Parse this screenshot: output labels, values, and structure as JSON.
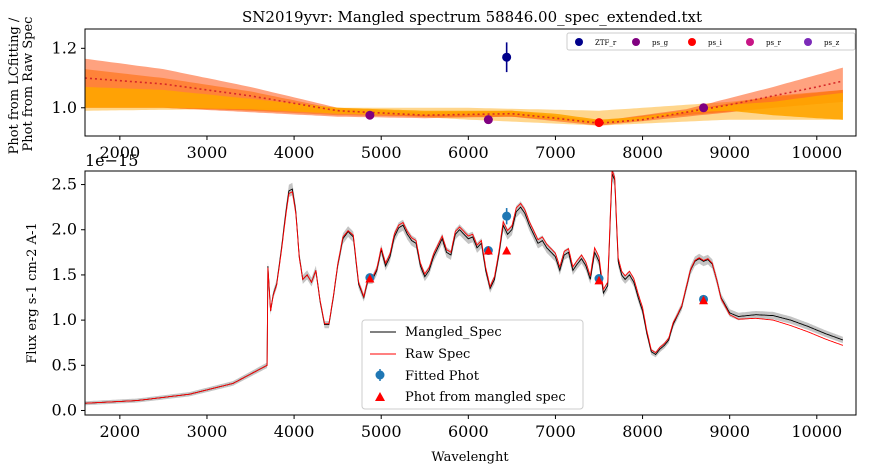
{
  "chart_data": [
    {
      "type": "line",
      "title": "SN2019yvr: Mangled spectrum 58846.00_spec_extended.txt",
      "xlabel": "",
      "ylabel": "Phot from LCfitting /\nPhot from Raw Spec",
      "xlim": [
        1600,
        10450
      ],
      "ylim": [
        0.905,
        1.265
      ],
      "xticks": [
        2000,
        3000,
        4000,
        5000,
        6000,
        7000,
        8000,
        9000,
        10000
      ],
      "yticks": [
        1.0,
        1.2
      ],
      "ytick_labels": [
        "1.0",
        "1.2"
      ],
      "legend_position": "upper-right",
      "legend": [
        {
          "name": "ZTF_r",
          "color": "#00008b"
        },
        {
          "name": "ps_g",
          "color": "#800080"
        },
        {
          "name": "ps_i",
          "color": "#ff0000"
        },
        {
          "name": "ps_r",
          "color": "#c71585"
        },
        {
          "name": "ps_z",
          "color": "#7b2ab8"
        }
      ],
      "points": [
        {
          "x": 4870,
          "y": 0.975,
          "color": "#800080",
          "yerr": 0
        },
        {
          "x": 6440,
          "y": 1.17,
          "color": "#00008b",
          "yerr": 0.05
        },
        {
          "x": 6230,
          "y": 0.96,
          "color": "#800080",
          "yerr": 0
        },
        {
          "x": 7500,
          "y": 0.95,
          "color": "#ff0000",
          "yerr": 0
        },
        {
          "x": 8700,
          "y": 1.0,
          "color": "#800080",
          "yerr": 0
        }
      ],
      "ratio_curve": {
        "color": "#d62728",
        "x": [
          1600,
          2500,
          3500,
          4500,
          5500,
          6500,
          7000,
          7500,
          8000,
          8500,
          9000,
          9500,
          10000,
          10300
        ],
        "y": [
          1.1,
          1.08,
          1.04,
          0.99,
          0.975,
          0.98,
          0.965,
          0.948,
          0.96,
          0.985,
          1.01,
          1.04,
          1.07,
          1.09
        ]
      },
      "bands": [
        {
          "color": "#ffa500",
          "opacity": 0.45,
          "x": [
            1600,
            3000,
            4500,
            6000,
            7500,
            9000,
            10300
          ],
          "lo": [
            0.99,
            0.995,
            0.985,
            0.96,
            0.94,
            0.96,
            0.96
          ],
          "hi": [
            1.0,
            1.0,
            1.0,
            1.0,
            0.99,
            1.02,
            1.06
          ]
        },
        {
          "color": "#ff4500",
          "opacity": 0.5,
          "x": [
            1600,
            2500,
            3500,
            4500,
            5500,
            6500,
            7500,
            8500,
            9500,
            10300
          ],
          "lo": [
            1.0,
            1.0,
            0.985,
            0.97,
            0.965,
            0.97,
            0.94,
            0.97,
            1.0,
            1.02
          ],
          "hi": [
            1.165,
            1.13,
            1.07,
            1.0,
            0.985,
            0.99,
            0.955,
            0.995,
            1.07,
            1.135
          ]
        },
        {
          "color": "#ff6a00",
          "opacity": 0.55,
          "x": [
            1600,
            2500,
            3500,
            4500,
            5500,
            6500,
            7500,
            8500,
            9500,
            10300
          ],
          "lo": [
            1.0,
            1.0,
            0.99,
            0.975,
            0.97,
            0.97,
            0.95,
            0.975,
            1.0,
            1.02
          ],
          "hi": [
            1.13,
            1.1,
            1.055,
            0.995,
            0.98,
            0.99,
            0.955,
            0.99,
            1.04,
            1.06
          ]
        },
        {
          "color": "#ffa500",
          "opacity": 0.9,
          "x": [
            1600,
            2500,
            3500,
            4500,
            5500,
            6500,
            7000,
            7500,
            8000,
            8500,
            9000,
            9500,
            10000,
            10300
          ],
          "lo": [
            1.0,
            1.0,
            0.995,
            0.98,
            0.975,
            0.975,
            0.96,
            0.945,
            0.958,
            0.985,
            0.99,
            0.975,
            0.965,
            0.96
          ],
          "hi": [
            1.07,
            1.06,
            1.03,
            1.0,
            0.99,
            0.99,
            0.98,
            0.96,
            0.97,
            0.99,
            1.01,
            1.02,
            1.04,
            1.05
          ]
        }
      ]
    },
    {
      "type": "line",
      "title": "",
      "xlabel": "Wavelenght",
      "ylabel": "Flux erg s-1 cm-2 A-1",
      "offset_label": "1e−15",
      "xlim": [
        1600,
        10450
      ],
      "ylim": [
        -0.05,
        2.65
      ],
      "xticks": [
        2000,
        3000,
        4000,
        5000,
        6000,
        7000,
        8000,
        9000,
        10000
      ],
      "yticks": [
        0.0,
        0.5,
        1.0,
        1.5,
        2.0,
        2.5
      ],
      "ytick_labels": [
        "0.0",
        "0.5",
        "1.0",
        "1.5",
        "2.0",
        "2.5"
      ],
      "legend_position": "lower-center",
      "series": [
        {
          "name": "Mangled_Spec",
          "color": "#000000",
          "x": [
            1600,
            2200,
            2800,
            3300,
            3690,
            3695,
            3730,
            3760,
            3800,
            3850,
            3900,
            3940,
            3980,
            4020,
            4060,
            4100,
            4150,
            4200,
            4250,
            4300,
            4350,
            4400,
            4450,
            4500,
            4560,
            4620,
            4680,
            4740,
            4800,
            4850,
            4900,
            4950,
            5000,
            5050,
            5100,
            5150,
            5200,
            5250,
            5300,
            5350,
            5400,
            5450,
            5500,
            5550,
            5600,
            5650,
            5700,
            5750,
            5800,
            5850,
            5900,
            5950,
            6000,
            6050,
            6100,
            6150,
            6200,
            6250,
            6300,
            6350,
            6400,
            6450,
            6500,
            6550,
            6600,
            6650,
            6700,
            6750,
            6800,
            6850,
            6900,
            6950,
            7000,
            7050,
            7100,
            7150,
            7200,
            7250,
            7300,
            7350,
            7400,
            7450,
            7500,
            7550,
            7600,
            7650,
            7680,
            7720,
            7760,
            7800,
            7850,
            7900,
            7950,
            8000,
            8050,
            8100,
            8150,
            8200,
            8250,
            8300,
            8350,
            8400,
            8450,
            8500,
            8550,
            8600,
            8650,
            8700,
            8750,
            8800,
            8850,
            8900,
            9000,
            9100,
            9300,
            9500,
            9700,
            9900,
            10100,
            10300
          ],
          "y": [
            0.08,
            0.11,
            0.18,
            0.3,
            0.5,
            1.68,
            1.1,
            1.28,
            1.4,
            1.75,
            2.15,
            2.43,
            2.45,
            2.2,
            1.7,
            1.45,
            1.5,
            1.42,
            1.55,
            1.2,
            0.95,
            0.95,
            1.25,
            1.6,
            1.9,
            1.98,
            1.92,
            1.4,
            1.25,
            1.45,
            1.45,
            1.55,
            1.78,
            1.6,
            1.7,
            1.92,
            2.02,
            2.05,
            1.95,
            1.88,
            1.85,
            1.6,
            1.48,
            1.55,
            1.7,
            1.8,
            1.9,
            1.75,
            1.72,
            1.95,
            2.0,
            1.95,
            1.9,
            1.92,
            1.8,
            1.85,
            1.55,
            1.35,
            1.45,
            1.72,
            2.05,
            1.95,
            2.0,
            2.2,
            2.25,
            2.18,
            2.05,
            1.95,
            1.85,
            1.88,
            1.8,
            1.75,
            1.7,
            1.55,
            1.72,
            1.75,
            1.55,
            1.62,
            1.68,
            1.6,
            1.45,
            1.75,
            1.65,
            1.3,
            1.38,
            2.62,
            2.55,
            1.65,
            1.5,
            1.45,
            1.5,
            1.42,
            1.25,
            1.1,
            0.85,
            0.65,
            0.62,
            0.68,
            0.72,
            0.78,
            0.95,
            1.05,
            1.15,
            1.35,
            1.55,
            1.65,
            1.68,
            1.65,
            1.67,
            1.62,
            1.45,
            1.25,
            1.08,
            1.04,
            1.06,
            1.05,
            1.0,
            0.93,
            0.85,
            0.78
          ],
          "band": true,
          "band_color": "#b0b0b0"
        },
        {
          "name": "Raw Spec",
          "color": "#ff0000",
          "x": [
            1600,
            2200,
            2800,
            3300,
            3690,
            3695,
            3730,
            3760,
            3800,
            3850,
            3900,
            3940,
            3980,
            4020,
            4060,
            4100,
            4150,
            4200,
            4250,
            4300,
            4350,
            4400,
            4450,
            4500,
            4560,
            4620,
            4680,
            4740,
            4800,
            4850,
            4900,
            4950,
            5000,
            5050,
            5100,
            5150,
            5200,
            5250,
            5300,
            5350,
            5400,
            5450,
            5500,
            5550,
            5600,
            5650,
            5700,
            5750,
            5800,
            5850,
            5900,
            5950,
            6000,
            6050,
            6100,
            6150,
            6200,
            6250,
            6300,
            6350,
            6400,
            6450,
            6500,
            6550,
            6600,
            6650,
            6700,
            6750,
            6800,
            6850,
            6900,
            6950,
            7000,
            7050,
            7100,
            7150,
            7200,
            7250,
            7300,
            7350,
            7400,
            7450,
            7500,
            7550,
            7600,
            7650,
            7680,
            7720,
            7760,
            7800,
            7850,
            7900,
            7950,
            8000,
            8050,
            8100,
            8150,
            8200,
            8250,
            8300,
            8350,
            8400,
            8450,
            8500,
            8550,
            8600,
            8650,
            8700,
            8750,
            8800,
            8850,
            8900,
            9000,
            9100,
            9300,
            9500,
            9700,
            9900,
            10100,
            10300
          ],
          "y": [
            0.08,
            0.11,
            0.18,
            0.3,
            0.5,
            1.66,
            1.1,
            1.27,
            1.39,
            1.73,
            2.12,
            2.4,
            2.42,
            2.18,
            1.69,
            1.45,
            1.5,
            1.42,
            1.55,
            1.21,
            0.96,
            0.96,
            1.26,
            1.61,
            1.92,
            1.99,
            1.94,
            1.42,
            1.26,
            1.47,
            1.47,
            1.57,
            1.8,
            1.63,
            1.73,
            1.95,
            2.05,
            2.08,
            1.98,
            1.91,
            1.88,
            1.63,
            1.51,
            1.58,
            1.73,
            1.83,
            1.93,
            1.78,
            1.75,
            1.98,
            2.03,
            1.98,
            1.93,
            1.95,
            1.83,
            1.88,
            1.58,
            1.37,
            1.48,
            1.75,
            2.09,
            1.99,
            2.04,
            2.24,
            2.29,
            2.22,
            2.09,
            1.99,
            1.89,
            1.92,
            1.84,
            1.79,
            1.74,
            1.59,
            1.76,
            1.79,
            1.59,
            1.66,
            1.72,
            1.64,
            1.49,
            1.8,
            1.7,
            1.34,
            1.42,
            2.66,
            2.58,
            1.69,
            1.54,
            1.49,
            1.54,
            1.46,
            1.29,
            1.14,
            0.88,
            0.67,
            0.64,
            0.7,
            0.74,
            0.8,
            0.97,
            1.06,
            1.16,
            1.36,
            1.56,
            1.66,
            1.69,
            1.66,
            1.68,
            1.63,
            1.45,
            1.24,
            1.06,
            1.01,
            1.02,
            1.0,
            0.94,
            0.87,
            0.79,
            0.72
          ]
        }
      ],
      "fitted_phot": {
        "name": "Fitted Phot",
        "color": "#1f77b4",
        "points": [
          {
            "x": 4870,
            "y": 1.47,
            "yerr": 0.03
          },
          {
            "x": 6230,
            "y": 1.77,
            "yerr": 0.03
          },
          {
            "x": 6440,
            "y": 2.15,
            "yerr": 0.09
          },
          {
            "x": 7500,
            "y": 1.46,
            "yerr": 0.03
          },
          {
            "x": 8700,
            "y": 1.23,
            "yerr": 0.03
          }
        ]
      },
      "mangled_phot": {
        "name": "Phot from mangled spec",
        "color": "#ff0000",
        "points": [
          {
            "x": 4870,
            "y": 1.46
          },
          {
            "x": 6230,
            "y": 1.77
          },
          {
            "x": 6440,
            "y": 1.77
          },
          {
            "x": 7500,
            "y": 1.44
          },
          {
            "x": 8700,
            "y": 1.22
          }
        ]
      }
    }
  ]
}
